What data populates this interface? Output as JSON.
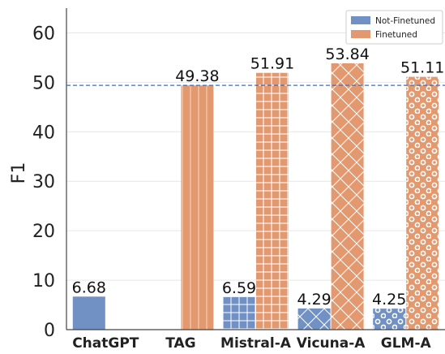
{
  "chart_data": {
    "type": "bar",
    "ylabel": "F1",
    "ylim": [
      0,
      65
    ],
    "yticks": [
      0,
      10,
      20,
      30,
      40,
      50,
      60
    ],
    "categories": [
      "ChatGPT",
      "TAG",
      "Mistral-A",
      "Vicuna-A",
      "GLM-A"
    ],
    "series": [
      {
        "name": "Not-Finetuned",
        "color": "#7190c4",
        "values": [
          6.68,
          null,
          6.59,
          4.29,
          4.25
        ],
        "labels": [
          "6.68",
          "",
          "6.59",
          "4.29",
          "4.25"
        ]
      },
      {
        "name": "Finetuned",
        "color": "#e3996f",
        "values": [
          null,
          49.38,
          51.91,
          53.84,
          51.11
        ],
        "labels": [
          "",
          "49.38",
          "51.91",
          "53.84",
          "51.11"
        ]
      }
    ],
    "hatches": [
      [
        "none",
        "none",
        "grid",
        "cross",
        "circles"
      ],
      [
        "none",
        "vertical",
        "grid",
        "cross",
        "circles"
      ]
    ],
    "reference_line": {
      "value": 49.38,
      "color": "#3a6fc4",
      "style": "dashed"
    },
    "legend": {
      "position": "top-right"
    },
    "grid": true
  }
}
